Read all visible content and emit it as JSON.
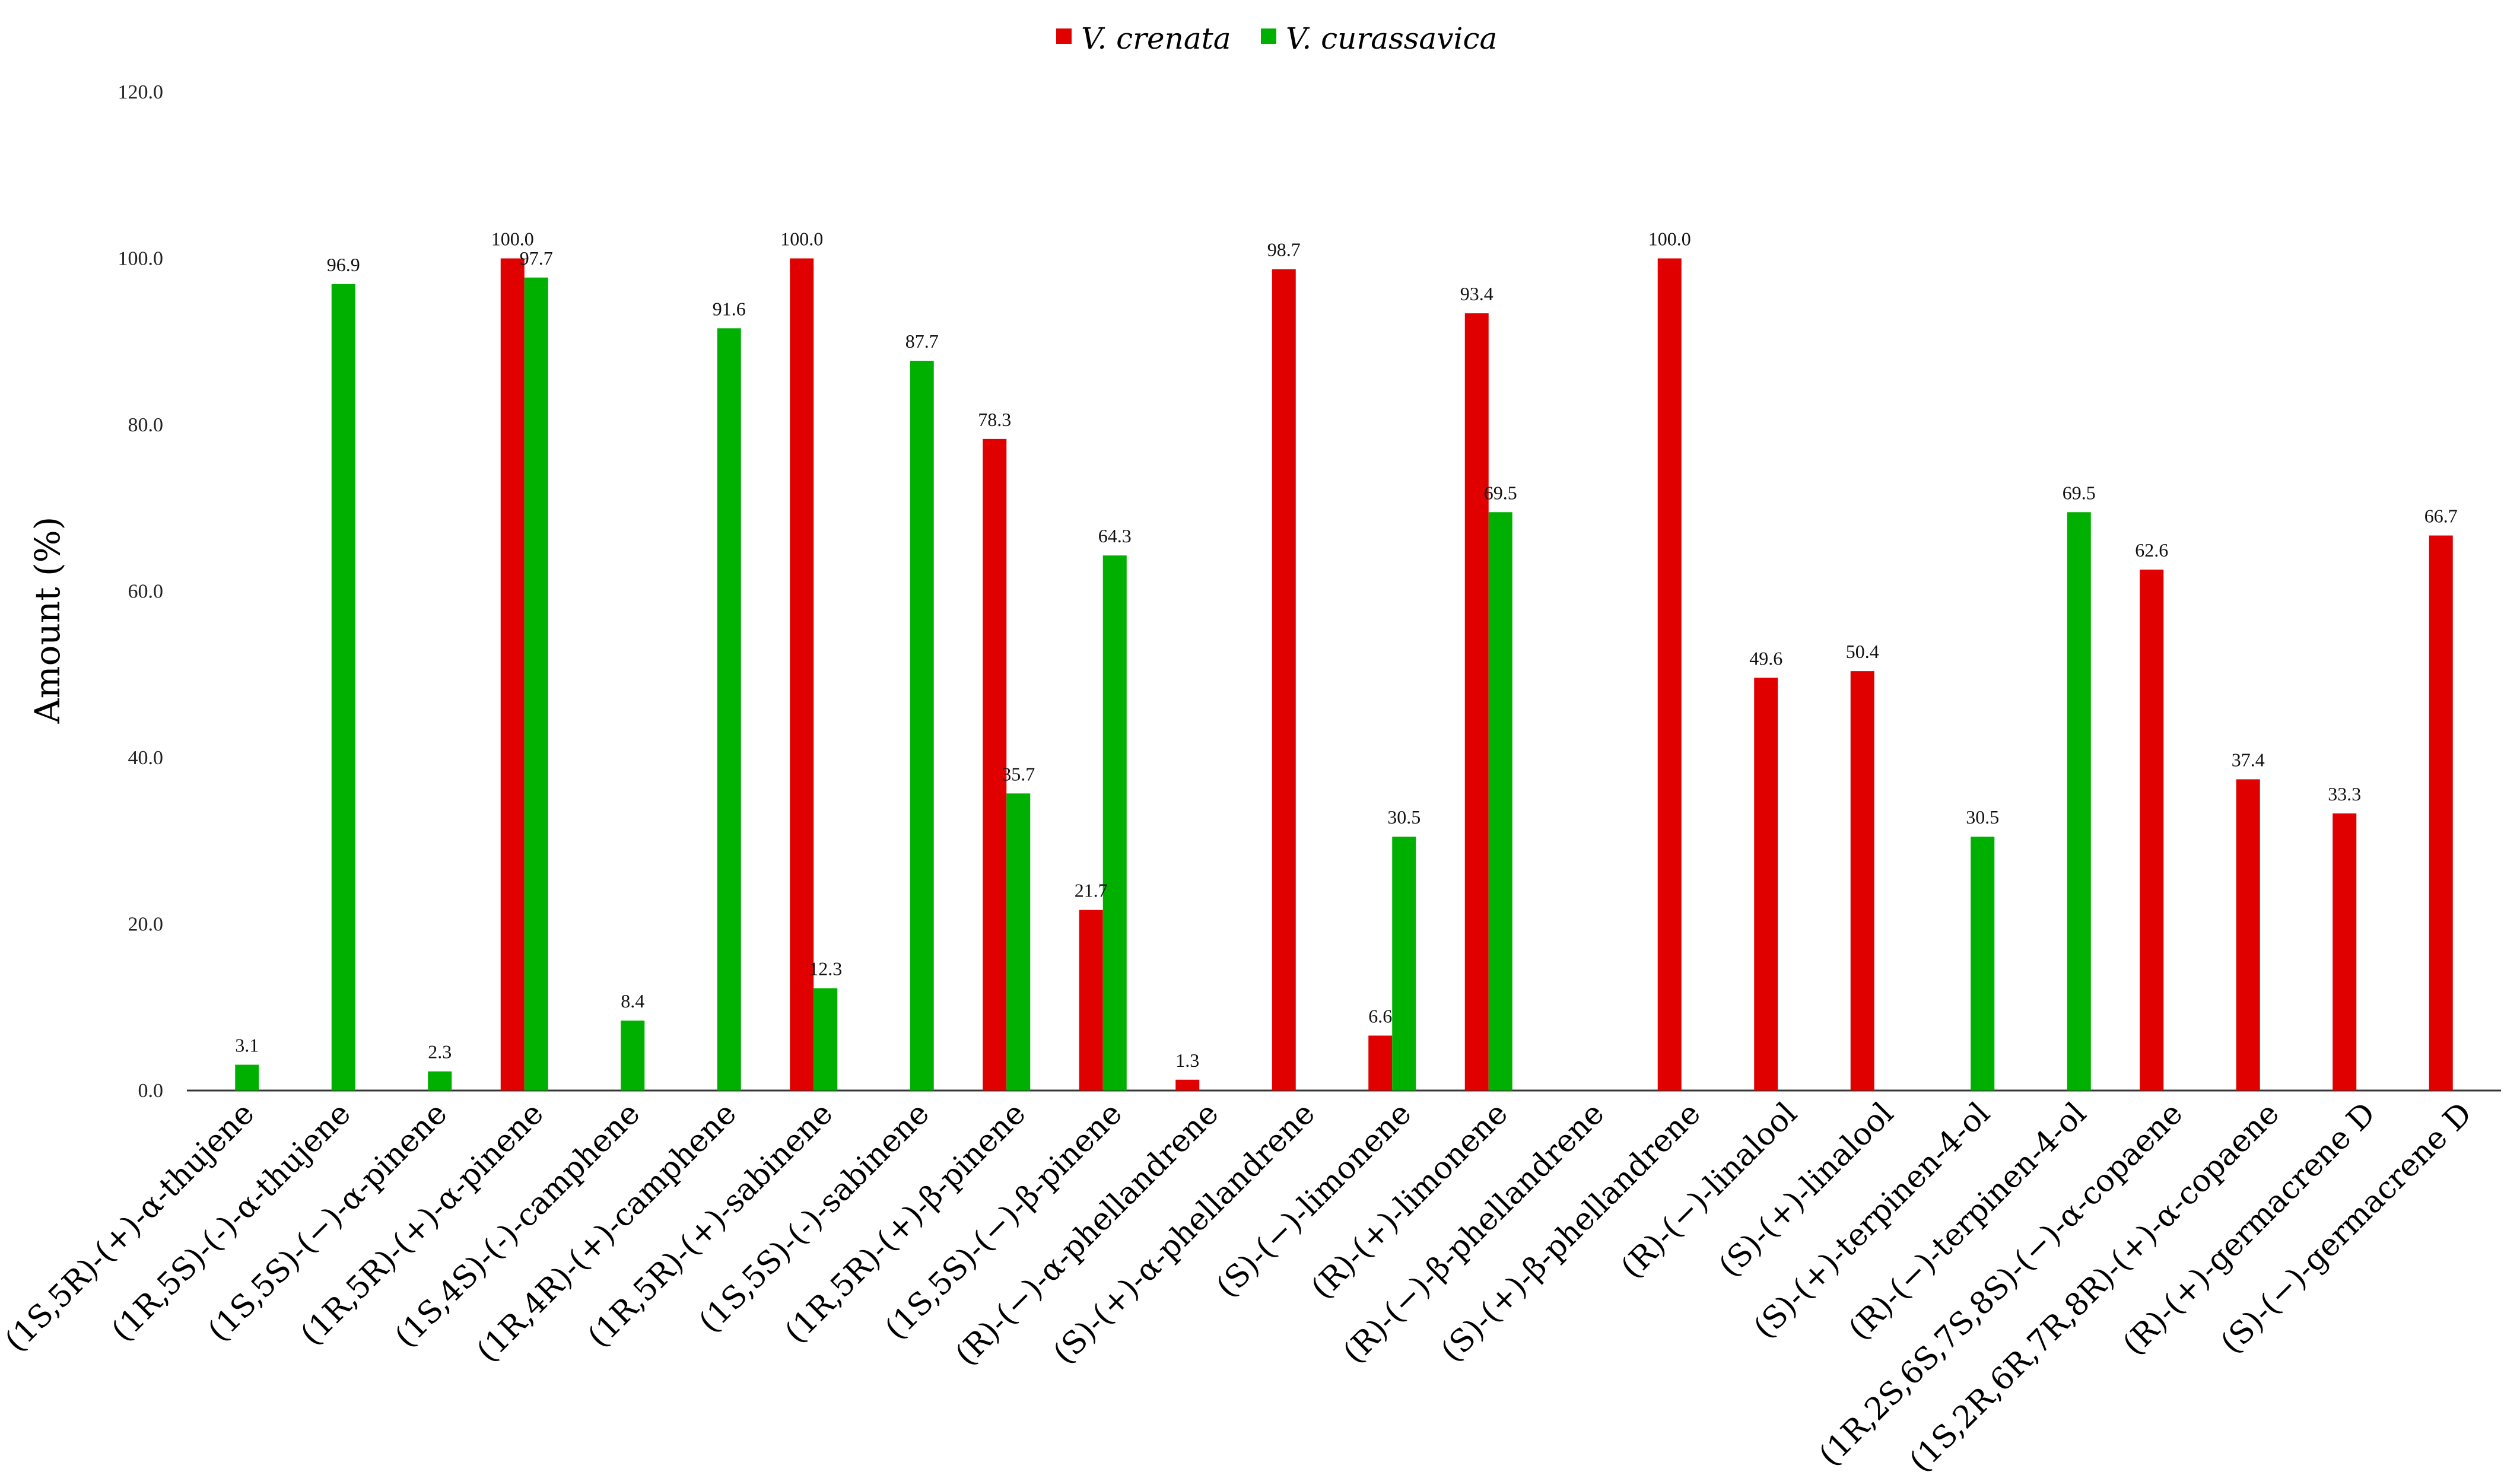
{
  "chart_data": {
    "type": "bar",
    "title": "",
    "xlabel": "",
    "ylabel": "Amount (%)",
    "ylim": [
      0,
      120
    ],
    "yticks": [
      "0.0",
      "20.0",
      "40.0",
      "60.0",
      "80.0",
      "100.0",
      "120.0"
    ],
    "grid": false,
    "legend_position": "top-center",
    "categories": [
      "(1S,5R)-(+)-α-thujene",
      "(1R,5S)-(-)-α-thujene",
      "(1S,5S)-(−)-α-pinene",
      "(1R,5R)-(+)-α-pinene",
      "(1S,4S)-(-)-camphene",
      "(1R,4R)-(+)-camphene",
      "(1R,5R)-(+)-sabinene",
      "(1S,5S)-(-)-sabinene",
      "(1R,5R)-(+)-β-pinene",
      "(1S,5S)-(−)-β-pinene",
      "(R)-(−)-α-phellandrene",
      "(S)-(+)-α-phellandrene",
      "(S)-(−)-limonene",
      "(R)-(+)-limonene",
      "(R)-(−)-β-phellandrene",
      "(S)-(+)-β-phellandrene",
      "(R)-(−)-linalool",
      "(S)-(+)-linalool",
      "(S)-(+)-terpinen-4-ol",
      "(R)-(−)-terpinen-4-ol",
      "(1R,2S,6S,7S,8S)-(−)-α-copaene",
      "(1S,2R,6R,7R,8R)-(+)-α-copaene",
      "(R)-(+)-germacrene D",
      "(S)-(−)-germacrene D"
    ],
    "series": [
      {
        "name": "V. crenata",
        "color": "#e00000",
        "values": [
          null,
          null,
          null,
          100.0,
          null,
          null,
          100.0,
          null,
          78.3,
          21.7,
          1.3,
          98.7,
          6.6,
          93.4,
          null,
          100.0,
          49.6,
          50.4,
          null,
          null,
          62.6,
          37.4,
          33.3,
          66.7
        ],
        "labels": [
          null,
          null,
          null,
          "100.0",
          null,
          null,
          "100.0",
          null,
          "78.3",
          "21.7",
          "1.3",
          "98.7",
          "6.6",
          "93.4",
          null,
          "100.0",
          "49.6",
          "50.4",
          null,
          null,
          "62.6",
          "37.4",
          "33.3",
          "66.7"
        ]
      },
      {
        "name": "V. curassavica",
        "color": "#00b000",
        "values": [
          3.1,
          96.9,
          2.3,
          97.7,
          8.4,
          91.6,
          12.3,
          87.7,
          35.7,
          64.3,
          null,
          null,
          30.5,
          69.5,
          null,
          null,
          null,
          null,
          30.5,
          69.5,
          null,
          null,
          null,
          null
        ],
        "labels": [
          "3.1",
          "96.9",
          "2.3",
          "97.7",
          "8.4",
          "91.6",
          "12.3",
          "87.7",
          "35.7",
          "64.3",
          null,
          null,
          "30.5",
          "69.5",
          null,
          null,
          null,
          null,
          "30.5",
          "69.5",
          null,
          null,
          null,
          null
        ]
      }
    ]
  }
}
